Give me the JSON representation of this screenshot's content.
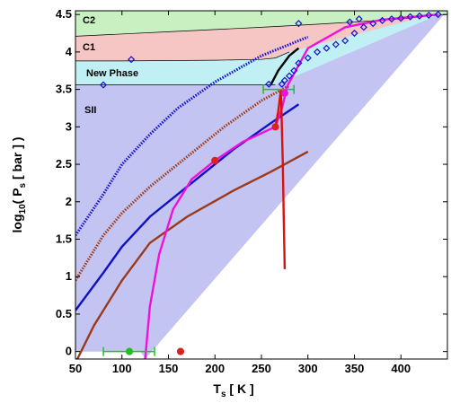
{
  "chart_data": {
    "type": "line",
    "title": "",
    "xlabel": {
      "main": "T",
      "sub": "s",
      "rest": " [ K ]"
    },
    "ylabel": {
      "pre": "log",
      "sub1": "10",
      "mid": "( P",
      "sub2": "s",
      "post": " [ bar ] )"
    },
    "xlim": [
      50,
      450
    ],
    "ylim": [
      -0.1,
      4.55
    ],
    "xticks": [
      "50",
      "100",
      "150",
      "200",
      "250",
      "300",
      "350",
      "400"
    ],
    "yticks": [
      "0",
      "0.5",
      "1",
      "1.5",
      "2",
      "2.5",
      "3",
      "3.5",
      "4",
      "4.5"
    ],
    "regions": [
      {
        "label": "C2",
        "color": "#c8f0c0",
        "boundary": [
          [
            50,
            4.21
          ],
          [
            150,
            4.27
          ],
          [
            250,
            4.33
          ],
          [
            310,
            4.37
          ],
          [
            350,
            4.4
          ],
          [
            400,
            4.44
          ],
          [
            430,
            4.48
          ],
          [
            450,
            4.5
          ]
        ]
      },
      {
        "label": "C1",
        "color": "#f6c6c4",
        "boundary": [
          [
            50,
            3.88
          ],
          [
            100,
            3.88
          ],
          [
            200,
            3.89
          ],
          [
            250,
            3.9
          ],
          [
            265,
            3.92
          ],
          [
            280,
            4.0
          ]
        ]
      },
      {
        "label": "New Phase",
        "color": "#c0f0f4",
        "boundary": [
          [
            50,
            3.56
          ],
          [
            150,
            3.56
          ],
          [
            250,
            3.56
          ],
          [
            265,
            3.56
          ]
        ]
      },
      {
        "label": "SII",
        "color": "#c4c4f2",
        "boundary": [
          [
            50,
            0
          ],
          [
            120,
            0
          ],
          [
            125,
            -0.1
          ]
        ]
      }
    ],
    "series": [
      {
        "style": "dotted",
        "color": "#1414cc",
        "points": [
          [
            50,
            1.55
          ],
          [
            80,
            2.1
          ],
          [
            100,
            2.5
          ],
          [
            130,
            2.9
          ],
          [
            160,
            3.25
          ],
          [
            200,
            3.6
          ],
          [
            250,
            3.95
          ],
          [
            300,
            4.2
          ]
        ]
      },
      {
        "style": "dotted",
        "color": "#9a3a1a",
        "points": [
          [
            50,
            0.95
          ],
          [
            80,
            1.55
          ],
          [
            100,
            1.85
          ],
          [
            130,
            2.2
          ],
          [
            170,
            2.6
          ],
          [
            210,
            3.0
          ],
          [
            250,
            3.35
          ],
          [
            280,
            3.55
          ]
        ]
      },
      {
        "style": "solid",
        "color": "#1010c8",
        "points": [
          [
            50,
            0.55
          ],
          [
            80,
            1.05
          ],
          [
            100,
            1.4
          ],
          [
            130,
            1.8
          ],
          [
            170,
            2.2
          ],
          [
            220,
            2.7
          ],
          [
            260,
            3.05
          ],
          [
            290,
            3.3
          ]
        ]
      },
      {
        "style": "solid",
        "color": "#9a3a1a",
        "points": [
          [
            52,
            -0.1
          ],
          [
            70,
            0.35
          ],
          [
            100,
            0.95
          ],
          [
            130,
            1.45
          ],
          [
            170,
            1.8
          ],
          [
            220,
            2.15
          ],
          [
            260,
            2.4
          ],
          [
            300,
            2.67
          ]
        ]
      },
      {
        "style": "solid",
        "color": "#ee10dd",
        "points": [
          [
            125,
            -0.1
          ],
          [
            130,
            0.6
          ],
          [
            140,
            1.3
          ],
          [
            155,
            1.9
          ],
          [
            175,
            2.3
          ],
          [
            200,
            2.55
          ],
          [
            230,
            2.8
          ],
          [
            265,
            3.0
          ],
          [
            272,
            3.25
          ],
          [
            278,
            3.55
          ],
          [
            300,
            4.05
          ],
          [
            340,
            4.33
          ],
          [
            380,
            4.43
          ],
          [
            440,
            4.5
          ]
        ]
      },
      {
        "style": "solid",
        "color": "#dd1010",
        "points": [
          [
            265,
            3.0
          ],
          [
            268,
            3.2
          ],
          [
            271,
            3.5
          ],
          [
            273,
            2.5
          ],
          [
            274,
            1.8
          ],
          [
            275,
            1.1
          ]
        ]
      },
      {
        "style": "solid",
        "color": "#000000",
        "points": [
          [
            260,
            3.56
          ],
          [
            268,
            3.75
          ],
          [
            280,
            3.95
          ],
          [
            290,
            4.05
          ]
        ]
      }
    ],
    "markers": [
      {
        "shape": "diamond",
        "color": "#1414cc",
        "points": [
          [
            80,
            3.56
          ],
          [
            110,
            3.9
          ],
          [
            258,
            3.57
          ],
          [
            272,
            3.57
          ],
          [
            275,
            3.62
          ],
          [
            280,
            3.68
          ],
          [
            285,
            3.75
          ],
          [
            290,
            3.85
          ],
          [
            300,
            3.92
          ],
          [
            310,
            4.0
          ],
          [
            320,
            4.05
          ],
          [
            330,
            4.1
          ],
          [
            340,
            4.15
          ],
          [
            350,
            4.25
          ],
          [
            360,
            4.33
          ],
          [
            370,
            4.38
          ],
          [
            380,
            4.42
          ],
          [
            390,
            4.44
          ],
          [
            400,
            4.45
          ],
          [
            410,
            4.47
          ],
          [
            420,
            4.48
          ],
          [
            430,
            4.49
          ],
          [
            440,
            4.5
          ],
          [
            290,
            4.38
          ],
          [
            345,
            4.4
          ],
          [
            355,
            4.44
          ]
        ]
      },
      {
        "shape": "circle",
        "color": "#dd2020",
        "points": [
          [
            163,
            0
          ],
          [
            200,
            2.55
          ],
          [
            265,
            3.0
          ]
        ]
      },
      {
        "shape": "circle",
        "color": "#ee10dd",
        "points": [
          [
            275,
            3.45
          ]
        ]
      },
      {
        "shape": "circle",
        "color": "#20c020",
        "points": [
          [
            108,
            0
          ]
        ]
      }
    ],
    "errorbars": [
      {
        "color": "#20c020",
        "x": 108,
        "y": 0,
        "xerr": [
          80,
          135
        ]
      },
      {
        "color": "#20c020",
        "x": 270,
        "y": 3.5,
        "xerr": [
          252,
          285
        ]
      }
    ]
  }
}
